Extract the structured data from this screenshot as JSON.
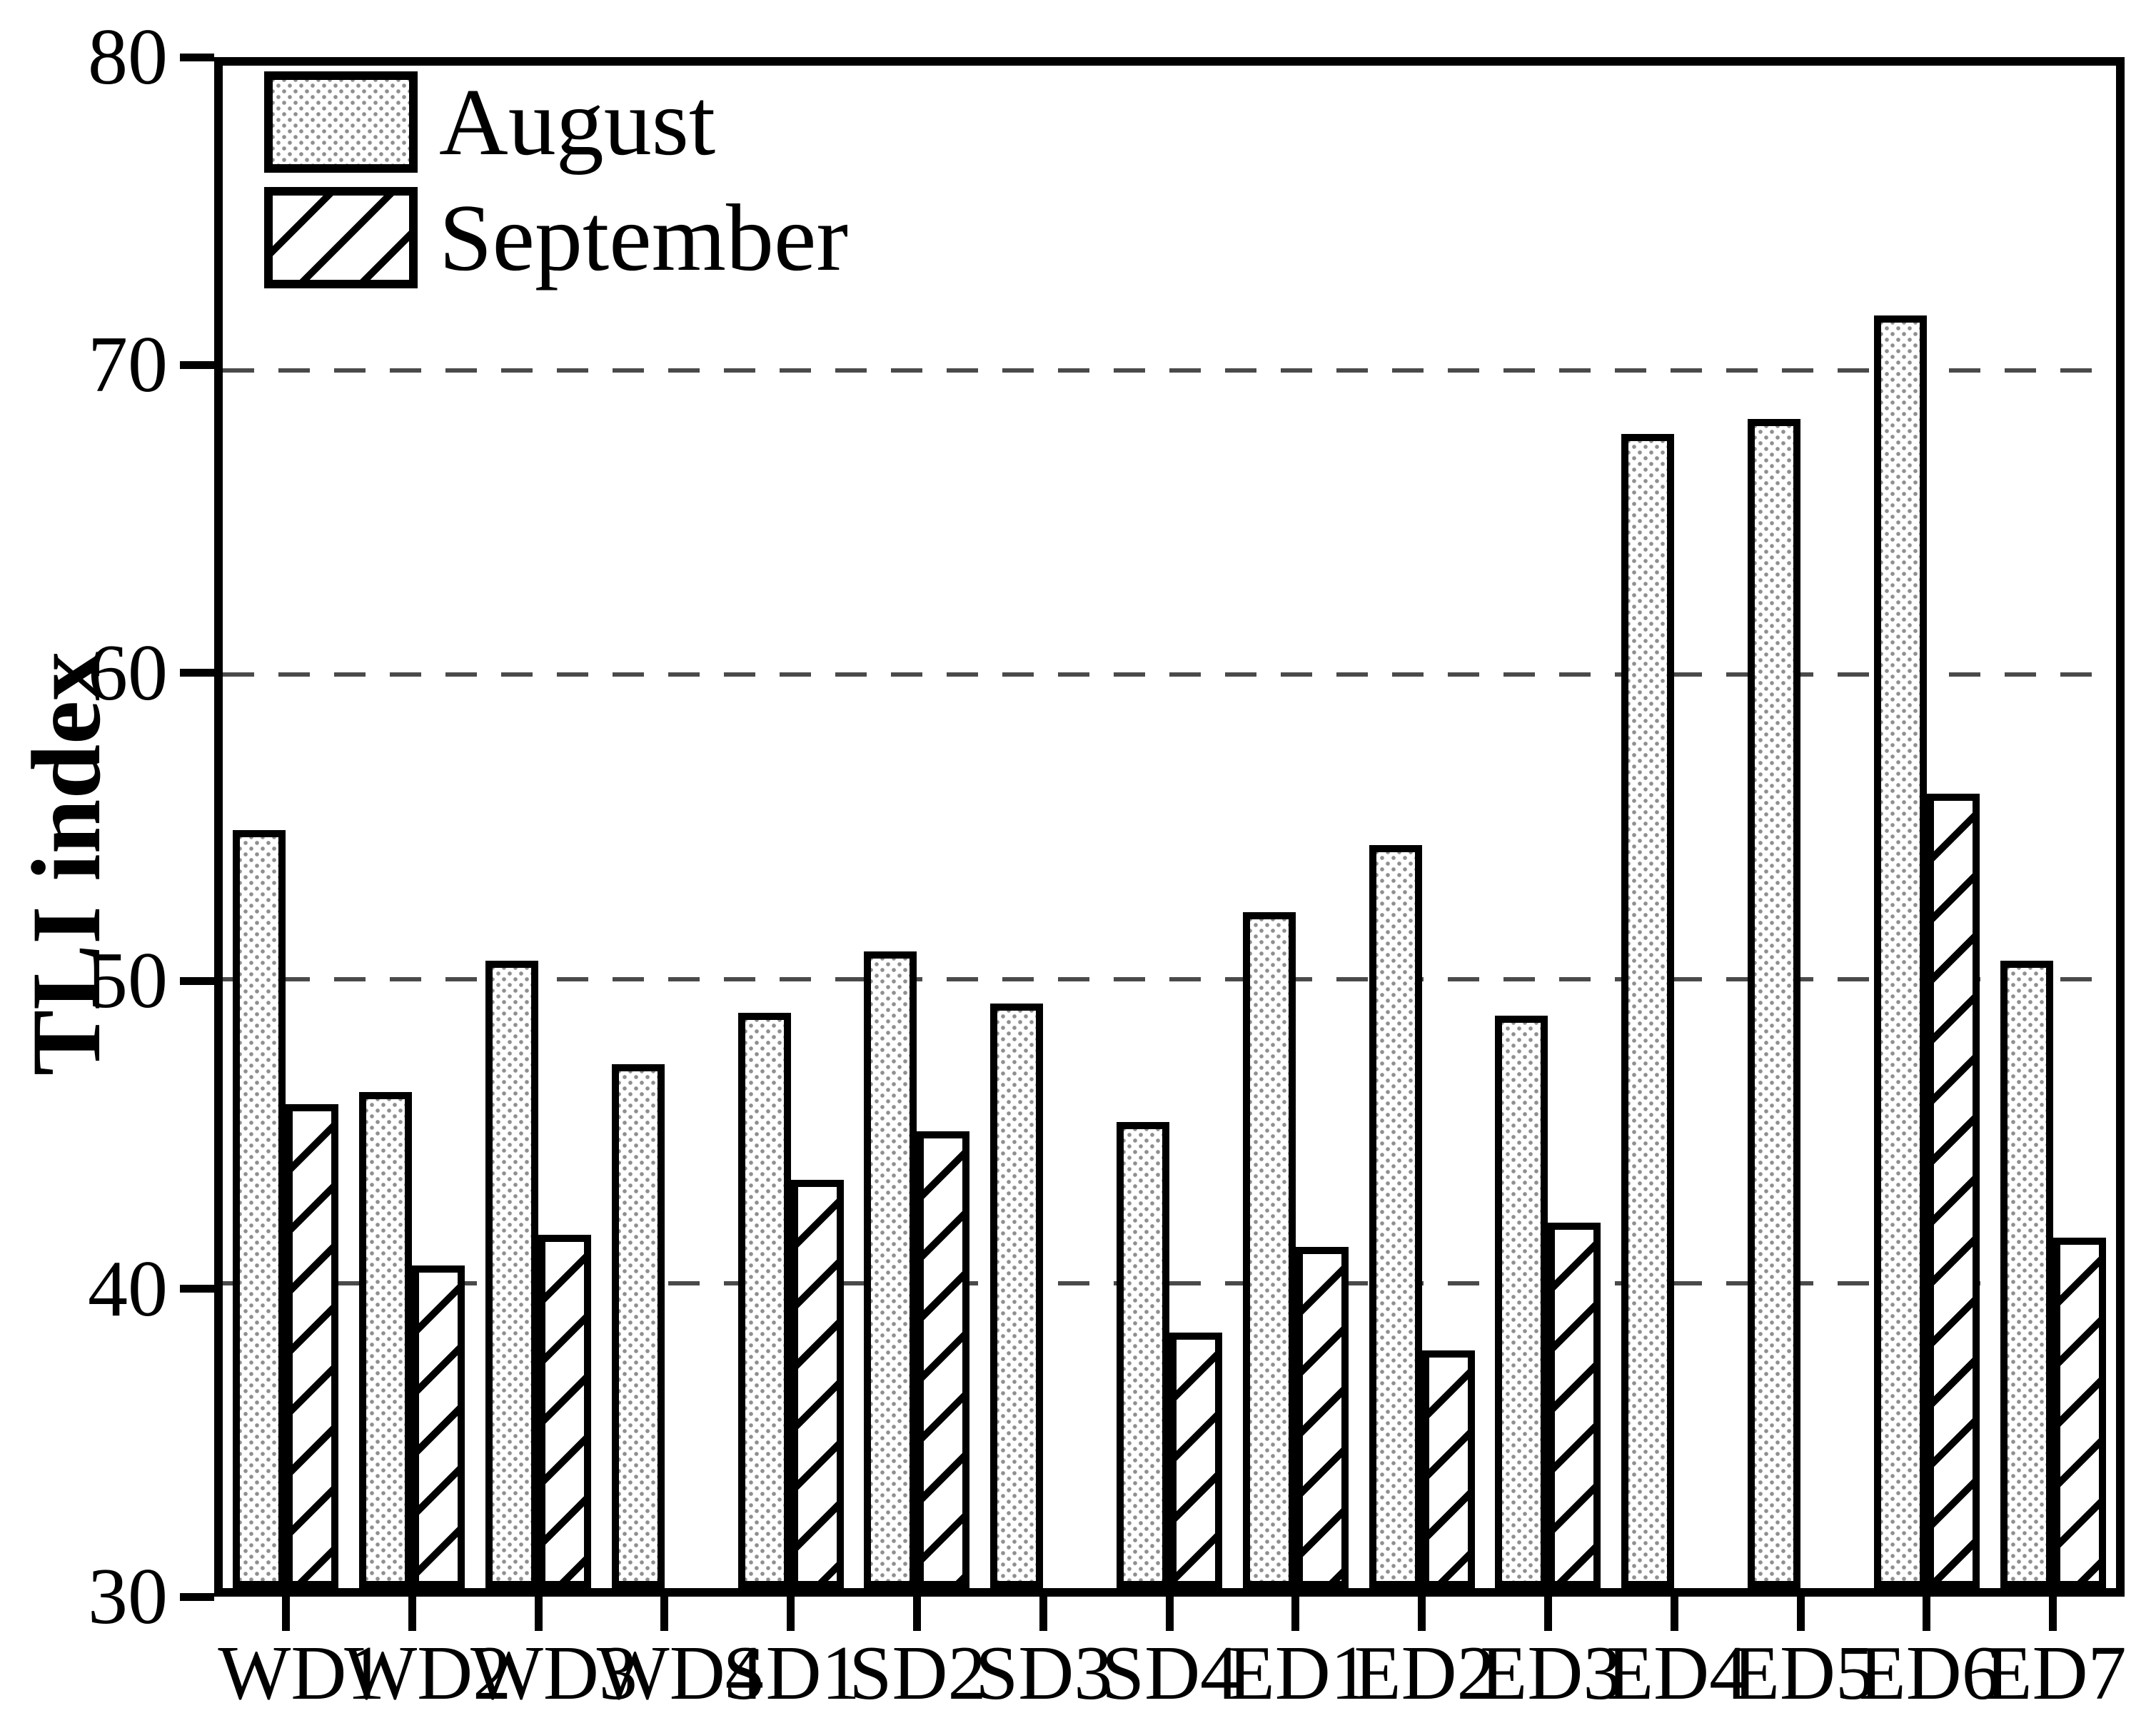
{
  "figure": {
    "ylabel": "TLI index",
    "legend_title_august": "August",
    "legend_title_september": "September"
  },
  "chart_data": {
    "type": "bar",
    "title": "",
    "xlabel": "",
    "ylabel": "TLI index",
    "ylim": [
      30,
      80
    ],
    "yticks": [
      30,
      40,
      50,
      60,
      70,
      80
    ],
    "gridlines": {
      "values": [
        40,
        50,
        60,
        70
      ],
      "style": "dashed"
    },
    "legend_position": "top-left",
    "grid_on": true,
    "categories": [
      "WD1",
      "WD2",
      "WD3",
      "WD4",
      "SD1",
      "SD2",
      "SD3",
      "SD4",
      "ED1",
      "ED2",
      "ED3",
      "ED4",
      "ED5",
      "ED6",
      "ED7"
    ],
    "series": [
      {
        "name": "August",
        "pattern": "dots",
        "values": [
          54.9,
          46.3,
          50.6,
          47.2,
          48.9,
          50.9,
          49.2,
          45.3,
          52.2,
          54.4,
          48.8,
          67.9,
          68.4,
          71.8,
          50.6
        ]
      },
      {
        "name": "September",
        "pattern": "hatch",
        "values": [
          45.9,
          40.6,
          41.6,
          null,
          43.4,
          45.0,
          null,
          38.4,
          41.2,
          37.8,
          42.0,
          null,
          null,
          56.1,
          41.5
        ]
      }
    ],
    "colors": {
      "bar_fill": "#ffffff",
      "bar_outline": "#000000",
      "dot_pattern": "#8f8f8f",
      "grid_line": "#4a4a4a",
      "text": "#000000"
    }
  }
}
